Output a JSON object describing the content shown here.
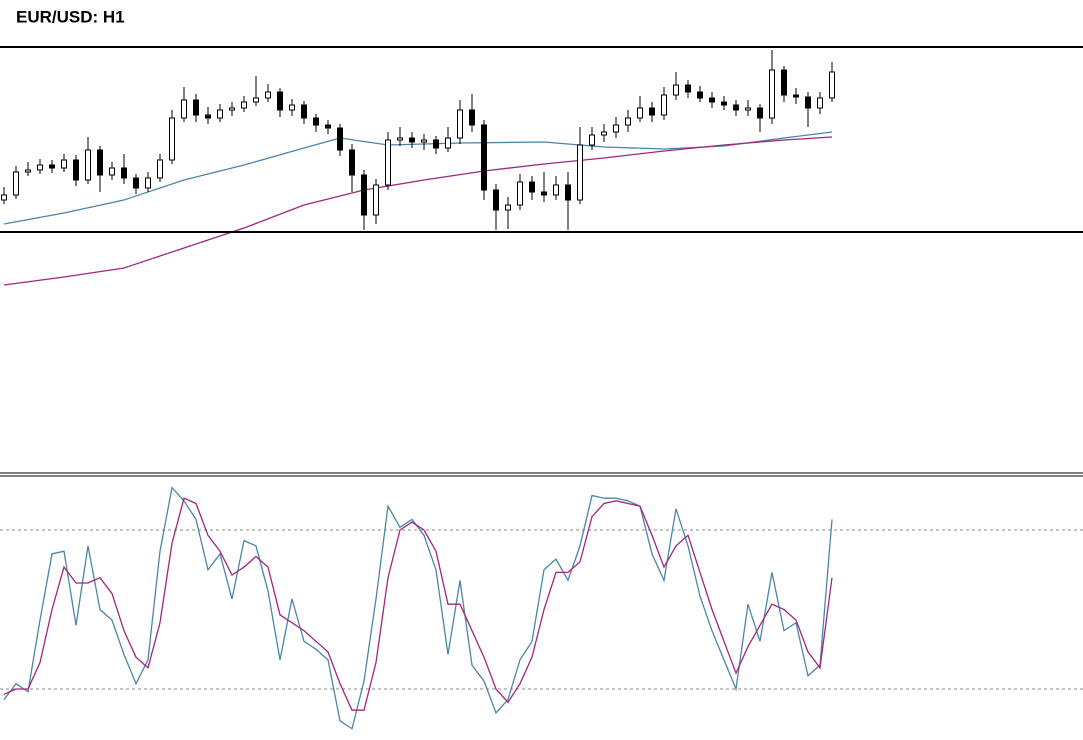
{
  "chart_data": [
    {
      "type": "candlestick",
      "title": "EUR/USD: H1",
      "ylim": [
        0,
        432
      ],
      "color": "#000000",
      "up_color": "#ffffff",
      "down_color": "#000000",
      "open": [
        272,
        277,
        300,
        302,
        307,
        304,
        312,
        292,
        322,
        297,
        304,
        294,
        284,
        294,
        312,
        354,
        372,
        357,
        354,
        362,
        364,
        370,
        374,
        380,
        362,
        367,
        354,
        347,
        344,
        322,
        297,
        257,
        287,
        332,
        334,
        330,
        332,
        324,
        334,
        362,
        347,
        282,
        262,
        267,
        290,
        280,
        277,
        287,
        272,
        327,
        337,
        340,
        347,
        354,
        364,
        357,
        377,
        387,
        380,
        374,
        370,
        367,
        362,
        364,
        354,
        402,
        377,
        375,
        364,
        374
      ],
      "high": [
        285,
        306,
        310,
        313,
        312,
        318,
        317,
        335,
        326,
        310,
        318,
        298,
        300,
        318,
        362,
        385,
        378,
        365,
        368,
        370,
        376,
        396,
        388,
        384,
        373,
        371,
        358,
        352,
        348,
        328,
        302,
        293,
        340,
        345,
        340,
        338,
        336,
        345,
        372,
        378,
        352,
        288,
        275,
        298,
        296,
        300,
        296,
        300,
        345,
        345,
        348,
        355,
        362,
        376,
        370,
        385,
        400,
        392,
        386,
        380,
        376,
        372,
        372,
        368,
        422,
        406,
        384,
        380,
        380,
        410
      ],
      "low": [
        268,
        273,
        296,
        298,
        299,
        300,
        286,
        288,
        280,
        292,
        288,
        278,
        280,
        290,
        308,
        350,
        350,
        348,
        350,
        356,
        360,
        366,
        370,
        355,
        356,
        348,
        340,
        338,
        316,
        280,
        242,
        248,
        282,
        326,
        324,
        322,
        318,
        320,
        328,
        340,
        272,
        242,
        243,
        262,
        272,
        270,
        272,
        242,
        268,
        322,
        330,
        334,
        340,
        350,
        350,
        352,
        372,
        374,
        370,
        364,
        362,
        356,
        356,
        340,
        348,
        370,
        368,
        345,
        358,
        370
      ],
      "close": [
        277,
        300,
        302,
        307,
        304,
        312,
        292,
        322,
        297,
        304,
        294,
        284,
        294,
        312,
        354,
        372,
        357,
        354,
        362,
        364,
        370,
        374,
        380,
        362,
        367,
        354,
        347,
        344,
        322,
        297,
        257,
        287,
        332,
        334,
        330,
        332,
        324,
        334,
        362,
        347,
        282,
        262,
        267,
        290,
        280,
        277,
        287,
        272,
        327,
        337,
        340,
        347,
        354,
        364,
        357,
        377,
        387,
        380,
        374,
        370,
        367,
        362,
        364,
        354,
        402,
        377,
        375,
        364,
        374,
        400
      ],
      "lines": [
        {
          "color": "#4a86a8",
          "x": [
            0,
            5,
            10,
            15,
            20,
            25,
            28,
            32,
            38,
            45,
            50,
            55,
            60,
            65,
            69
          ],
          "values": [
            248,
            259,
            272,
            292,
            307,
            324,
            334,
            327,
            329,
            330,
            325,
            323,
            326,
            334,
            340
          ]
        },
        {
          "color": "#a0267e",
          "x": [
            0,
            5,
            10,
            15,
            20,
            25,
            30,
            35,
            40,
            45,
            50,
            55,
            60,
            65,
            69
          ],
          "values": [
            187,
            195,
            204,
            224,
            244,
            267,
            282,
            292,
            301,
            308,
            314,
            321,
            327,
            332,
            335
          ]
        }
      ],
      "levels": [
        425,
        240
      ]
    },
    {
      "type": "line",
      "ylim": [
        0,
        100
      ],
      "levels": [
        20,
        80
      ],
      "series": [
        {
          "color": "#4a86a8",
          "values": [
            16,
            22,
            19,
            46,
            71,
            72,
            44,
            74,
            50,
            46,
            33,
            22,
            31,
            72,
            96,
            91,
            84,
            65,
            71,
            54,
            76,
            74,
            57,
            31,
            54,
            38,
            35,
            31,
            8,
            5,
            23,
            54,
            89,
            81,
            84,
            78,
            65,
            33,
            61,
            29,
            23,
            11,
            16,
            31,
            38,
            65,
            69,
            61,
            74,
            93,
            92,
            92,
            91,
            89,
            71,
            61,
            88,
            74,
            55,
            42,
            31,
            20,
            52,
            38,
            64,
            42,
            45,
            25,
            29,
            84
          ]
        },
        {
          "color": "#a0267e",
          "values": [
            18,
            20,
            20,
            30,
            50,
            66,
            60,
            60,
            62,
            56,
            42,
            32,
            28,
            45,
            75,
            92,
            90,
            78,
            72,
            63,
            66,
            70,
            66,
            48,
            45,
            42,
            38,
            34,
            22,
            12,
            12,
            30,
            62,
            80,
            83,
            80,
            72,
            52,
            52,
            42,
            32,
            20,
            15,
            22,
            32,
            50,
            64,
            64,
            68,
            85,
            90,
            91,
            90,
            89,
            78,
            66,
            74,
            78,
            64,
            50,
            38,
            26,
            36,
            44,
            52,
            50,
            46,
            34,
            28,
            62
          ]
        }
      ]
    }
  ]
}
